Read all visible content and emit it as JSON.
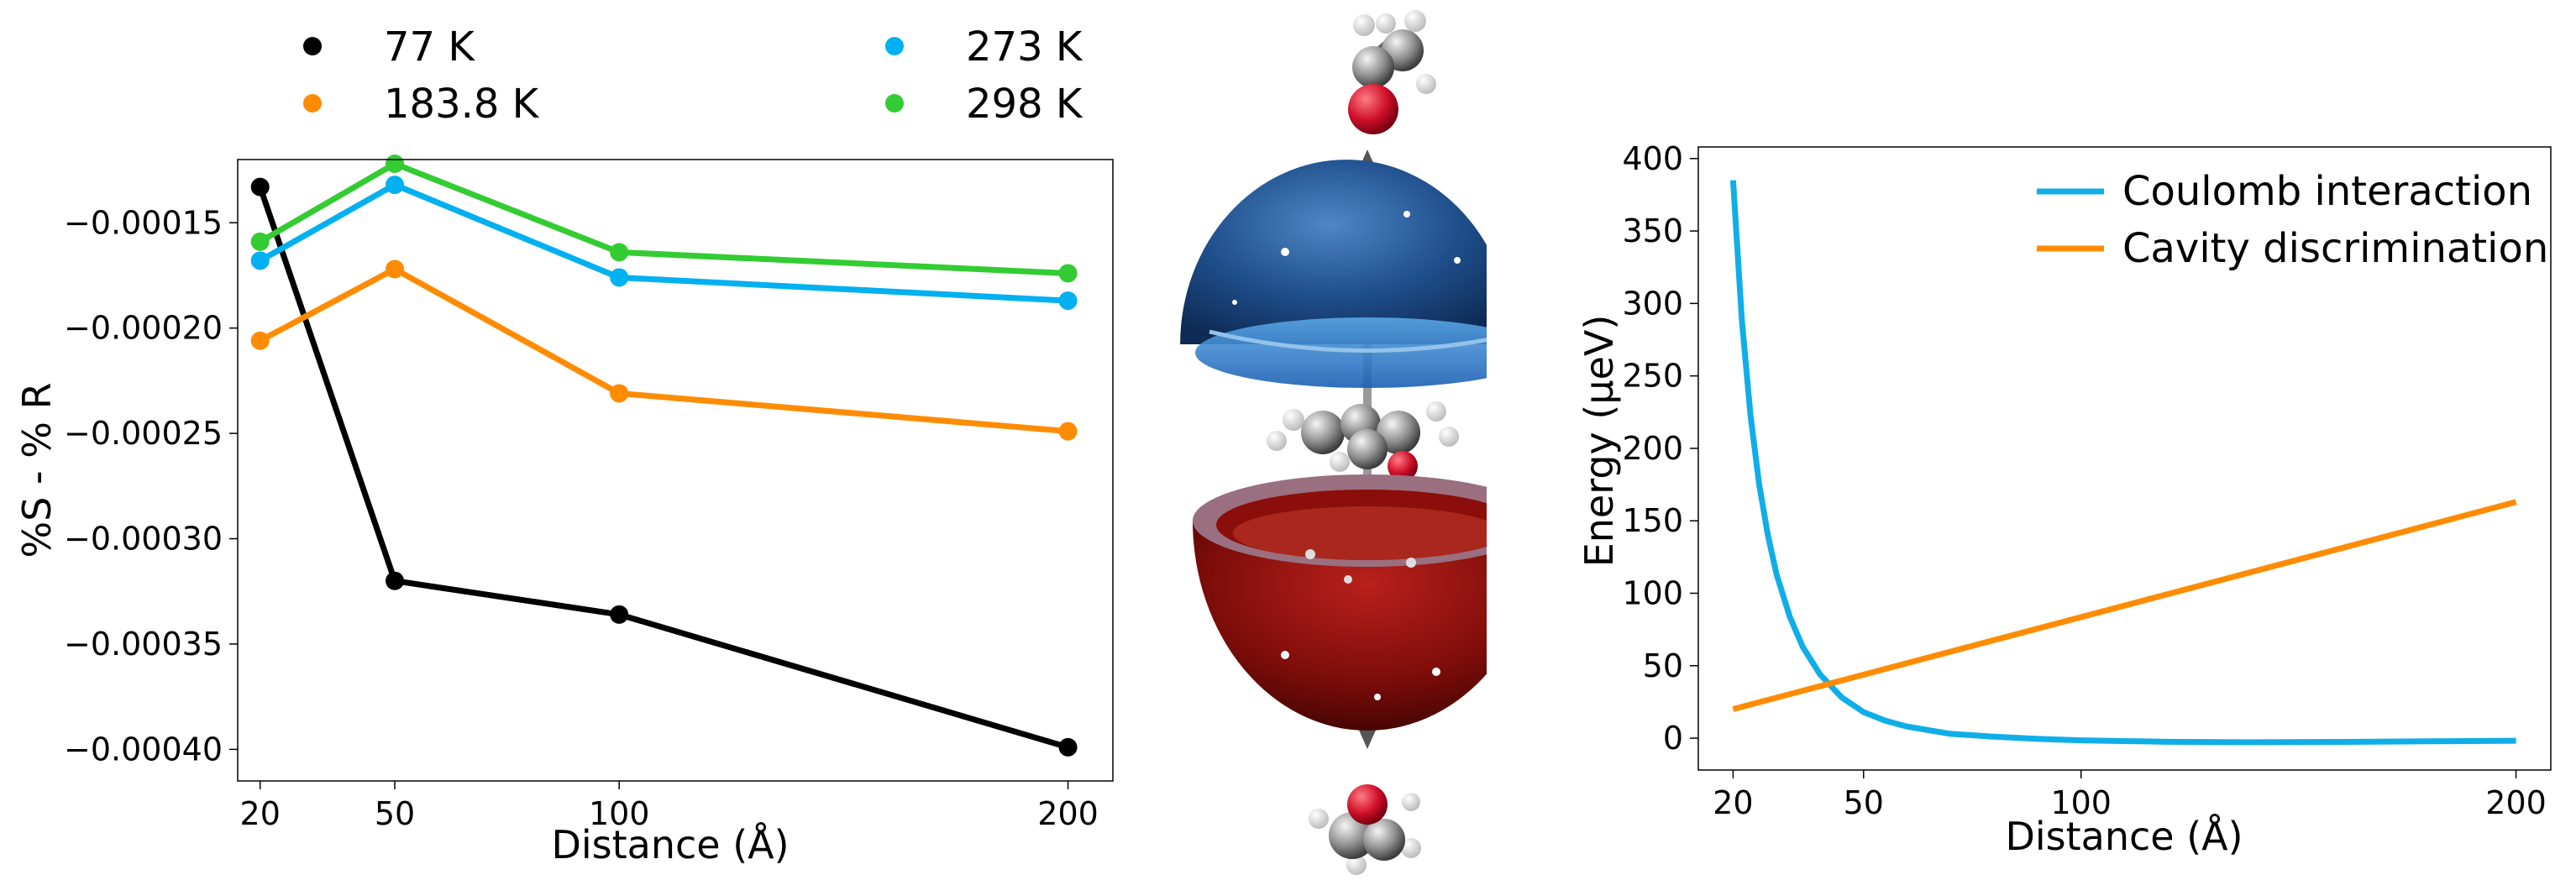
{
  "colors": {
    "k77": "#000000",
    "k183": "#ff8c00",
    "k273": "#00b0f0",
    "k298": "#33cc33",
    "coulomb": "#10aee8",
    "cavity": "#ff8c00"
  },
  "chart_data": [
    {
      "type": "line",
      "xlabel": "Distance (Å)",
      "ylabel": "%S - % R",
      "xlim": [
        15,
        210
      ],
      "ylim": [
        -0.000415,
        -0.00012
      ],
      "xticks": [
        20,
        50,
        100,
        200
      ],
      "xtick_labels": [
        "20",
        "50",
        "100",
        "200"
      ],
      "yticks": [
        -0.00015,
        -0.0002,
        -0.00025,
        -0.0003,
        -0.00035,
        -0.0004
      ],
      "ytick_labels": [
        "−0.00015",
        "−0.00020",
        "−0.00025",
        "−0.00030",
        "−0.00035",
        "−0.00040"
      ],
      "legend_position": "above plot",
      "x": [
        20,
        50,
        100,
        200
      ],
      "series": [
        {
          "name": "77 K",
          "color_key": "k77",
          "values": [
            -0.000133,
            -0.00032,
            -0.000336,
            -0.000399
          ]
        },
        {
          "name": "183.8 K",
          "color_key": "k183",
          "values": [
            -0.000206,
            -0.000172,
            -0.000231,
            -0.000249
          ]
        },
        {
          "name": "273 K",
          "color_key": "k273",
          "values": [
            -0.000168,
            -0.000132,
            -0.000176,
            -0.000187
          ]
        },
        {
          "name": "298 K",
          "color_key": "k298",
          "values": [
            -0.000159,
            -0.000122,
            -0.000164,
            -0.000174
          ]
        }
      ]
    },
    {
      "type": "line",
      "xlabel": "Distance (Å)",
      "ylabel": "Energy (μeV)",
      "xlim": [
        12,
        208
      ],
      "ylim": [
        -22,
        408
      ],
      "xticks": [
        20,
        50,
        100,
        200
      ],
      "xtick_labels": [
        "20",
        "50",
        "100",
        "200"
      ],
      "yticks": [
        0,
        50,
        100,
        150,
        200,
        250,
        300,
        350,
        400
      ],
      "ytick_labels": [
        "0",
        "50",
        "100",
        "150",
        "200",
        "250",
        "300",
        "350",
        "400"
      ],
      "legend_position": "top-right",
      "series": [
        {
          "name": "Coulomb interaction",
          "color_key": "coulomb",
          "x": [
            20,
            22,
            24,
            26,
            28,
            30,
            33,
            36,
            40,
            45,
            50,
            55,
            60,
            70,
            80,
            90,
            100,
            120,
            140,
            160,
            180,
            200
          ],
          "values": [
            385,
            289,
            223,
            175,
            140,
            113,
            84,
            63,
            44,
            28,
            18,
            12,
            8,
            3,
            1,
            -0.5,
            -1.5,
            -2.5,
            -2.8,
            -2.6,
            -2.2,
            -1.8
          ]
        },
        {
          "name": "Cavity discrimination",
          "color_key": "cavity",
          "x": [
            20,
            200
          ],
          "values": [
            20,
            163
          ]
        }
      ]
    }
  ]
}
